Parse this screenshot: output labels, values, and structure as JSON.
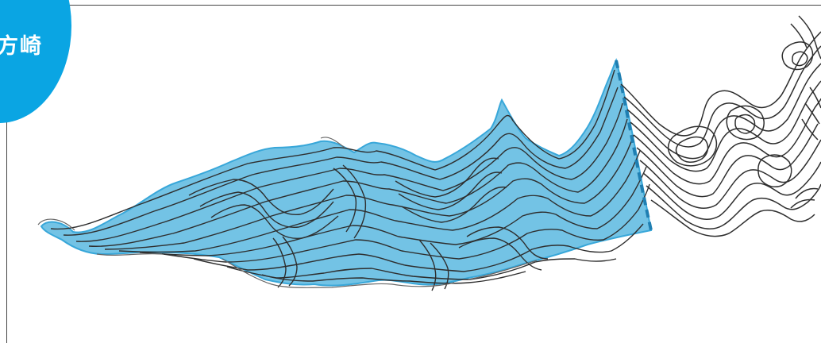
{
  "badge": {
    "label": "方崎",
    "color": "#0aa5e3"
  },
  "map": {
    "highlight_color": "#38a7d9",
    "highlight_fill": "#5bb8e0",
    "contour_color": "#2e2e2e",
    "boundary_color": "#1f7fb2"
  }
}
